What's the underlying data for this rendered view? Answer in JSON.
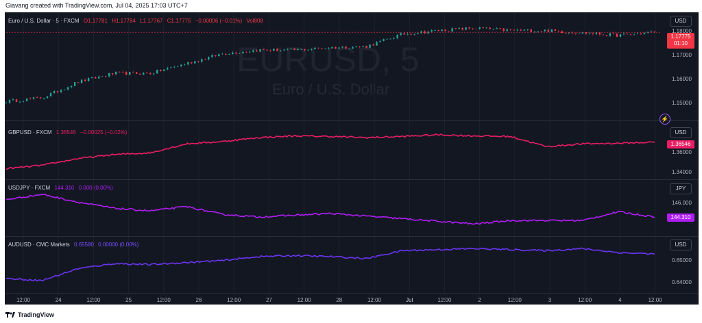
{
  "header": {
    "text": "Giavang created with TradingView.com, Jul 04, 2025 17:03 UTC+7"
  },
  "footer": {
    "brand": "TradingView"
  },
  "watermark": {
    "symbol": "EURUSD, 5",
    "name": "Euro / U.S. Dollar"
  },
  "panes": [
    {
      "legend": {
        "title": "Euro / U.S. Dollar · 5 · FXCM",
        "o": "O1.17781",
        "h": "H1.17784",
        "l": "L1.17767",
        "c": "C1.17775",
        "chg": "−0.00006 (−0.01%)",
        "vol": "Vol808"
      },
      "currency": "USD",
      "ticks": [
        "1.18000",
        "1.17000",
        "1.16000",
        "1.15000"
      ],
      "price_badge": "1.17775",
      "countdown": "01:10",
      "color": "#f23645",
      "type": "candles"
    },
    {
      "legend": {
        "title": "GBPUSD · FXCM",
        "value": "1.36546",
        "chg": "−0.00025 (−0.02%)"
      },
      "currency": "USD",
      "ticks": [
        "1.36000",
        "1.34000"
      ],
      "price_badge": "1.36546",
      "color": "#e91e63",
      "type": "line"
    },
    {
      "legend": {
        "title": "USDJPY · FXCM",
        "value": "144.310",
        "chg": "0.000 (0.00%)"
      },
      "currency": "JPY",
      "ticks": [
        "146.000"
      ],
      "price_badge": "144.310",
      "color": "#b01ef5",
      "type": "line"
    },
    {
      "legend": {
        "title": "AUDUSD · CMC Markets",
        "value": "0.65580",
        "chg": "0.00000 (0.00%)"
      },
      "currency": "USD",
      "ticks": [
        "0.65000",
        "0.64000"
      ],
      "color": "#6a35f0",
      "type": "line"
    }
  ],
  "x_axis": {
    "labels": [
      "12:00",
      "24",
      "12:00",
      "25",
      "12:00",
      "26",
      "12:00",
      "27",
      "12:00",
      "28",
      "12:00",
      "Jul",
      "12:00",
      "2",
      "12:00",
      "3",
      "12:00",
      "4",
      "12:00"
    ]
  },
  "colors": {
    "background": "#131722",
    "up": "#26a69a",
    "down": "#f23645",
    "grid": "#2a2e39",
    "text": "#d1d4dc"
  },
  "icons": {
    "alert": "lightning-icon"
  },
  "chart_data": [
    {
      "type": "candlestick",
      "title": "EURUSD, 5",
      "ylim": [
        1.144,
        1.182
      ],
      "x": [
        "Jun 23 12:00",
        "Jun 24",
        "Jun 24 12:00",
        "Jun 25",
        "Jun 25 12:00",
        "Jun 26",
        "Jun 26 12:00",
        "Jun 27",
        "Jun 27 12:00",
        "Jun 28",
        "Jun 28 12:00",
        "Jul 1",
        "Jul 1 12:00",
        "Jul 2",
        "Jul 2 12:00",
        "Jul 3",
        "Jul 3 12:00",
        "Jul 4",
        "Jul 4 12:00"
      ],
      "y": [
        1.1495,
        1.151,
        1.1575,
        1.161,
        1.161,
        1.165,
        1.169,
        1.1705,
        1.1705,
        1.1715,
        1.172,
        1.177,
        1.1785,
        1.1795,
        1.1785,
        1.1785,
        1.1775,
        1.1765,
        1.17775
      ],
      "last": 1.17775
    },
    {
      "type": "line",
      "title": "GBPUSD",
      "ylim": [
        1.335,
        1.375
      ],
      "x": [
        "Jun 23 12:00",
        "Jun 24",
        "Jun 24 12:00",
        "Jun 25",
        "Jun 25 12:00",
        "Jun 26",
        "Jun 26 12:00",
        "Jun 27",
        "Jun 27 12:00",
        "Jun 28",
        "Jun 28 12:00",
        "Jul 1",
        "Jul 1 12:00",
        "Jul 2",
        "Jul 2 12:00",
        "Jul 3",
        "Jul 3 12:00",
        "Jul 4",
        "Jul 4 12:00"
      ],
      "y": [
        1.342,
        1.345,
        1.351,
        1.3545,
        1.356,
        1.364,
        1.366,
        1.3695,
        1.371,
        1.3705,
        1.3695,
        1.3705,
        1.372,
        1.371,
        1.3705,
        1.3615,
        1.364,
        1.3645,
        1.36546
      ],
      "last": 1.36546
    },
    {
      "type": "line",
      "title": "USDJPY",
      "ylim": [
        142.5,
        148.0
      ],
      "x": [
        "Jun 23 12:00",
        "Jun 24",
        "Jun 24 12:00",
        "Jun 25",
        "Jun 25 12:00",
        "Jun 26",
        "Jun 26 12:00",
        "Jun 27",
        "Jun 27 12:00",
        "Jun 28",
        "Jun 28 12:00",
        "Jul 1",
        "Jul 1 12:00",
        "Jul 2",
        "Jul 2 12:00",
        "Jul 3",
        "Jul 3 12:00",
        "Jul 4",
        "Jul 4 12:00"
      ],
      "y": [
        146.3,
        146.9,
        146.0,
        145.3,
        145.0,
        145.5,
        144.6,
        144.3,
        144.5,
        144.7,
        144.4,
        144.1,
        143.8,
        143.5,
        143.9,
        143.9,
        143.9,
        144.9,
        144.31
      ],
      "last": 144.31
    },
    {
      "type": "line",
      "title": "AUDUSD",
      "ylim": [
        0.638,
        0.661
      ],
      "x": [
        "Jun 23 12:00",
        "Jun 24",
        "Jun 24 12:00",
        "Jun 25",
        "Jun 25 12:00",
        "Jun 26",
        "Jun 26 12:00",
        "Jun 27",
        "Jun 27 12:00",
        "Jun 28",
        "Jun 28 12:00",
        "Jul 1",
        "Jul 1 12:00",
        "Jul 2",
        "Jul 2 12:00",
        "Jul 3",
        "Jul 3 12:00",
        "Jul 4",
        "Jul 4 12:00"
      ],
      "y": [
        0.6435,
        0.6425,
        0.6485,
        0.651,
        0.6505,
        0.6515,
        0.6525,
        0.6545,
        0.655,
        0.6545,
        0.6535,
        0.6575,
        0.658,
        0.6585,
        0.658,
        0.6575,
        0.6585,
        0.6565,
        0.6558
      ],
      "last": 0.6558
    }
  ]
}
